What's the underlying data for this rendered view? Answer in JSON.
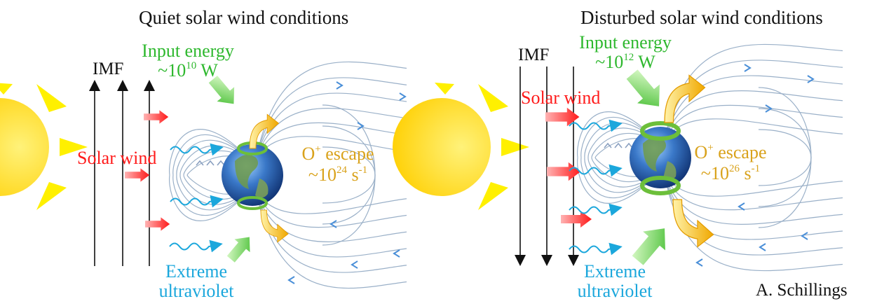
{
  "colors": {
    "sun": "#ffd700",
    "sun_rays": "#fff000",
    "field_lines": "#9ab0c8",
    "field_arrows": "#4a8fd8",
    "wind": "#ff2b2b",
    "input": "#66cc44",
    "escape": "#f5b400",
    "euv": "#1ba7dc",
    "ring": "#6cbf3a"
  },
  "icons": [
    "sun-icon",
    "earth-icon",
    "solar-wind-arrow-icon",
    "input-energy-arrow-icon",
    "oxygen-escape-arrow-icon",
    "euv-wave-icon",
    "auroral-ring-icon",
    "imf-arrow-icon"
  ],
  "panels": [
    {
      "title": "Quiet solar wind conditions",
      "imf": "IMF",
      "imf_direction": "northward",
      "input_label": "Input energy",
      "input_value": "~10",
      "input_exp": "10",
      "input_unit": " W",
      "wind_label": "Solar wind",
      "escape_label": "O",
      "escape_sup": "+",
      "escape_word": " escape",
      "escape_value": "~10",
      "escape_exp": "24",
      "escape_unit": " s",
      "escape_unit_exp": "-1",
      "euv_line1": "Extreme",
      "euv_line2": "ultraviolet"
    },
    {
      "title": "Disturbed solar wind conditions",
      "imf": "IMF",
      "imf_direction": "southward",
      "input_label": "Input energy",
      "input_value": "~10",
      "input_exp": "12",
      "input_unit": " W",
      "wind_label": "Solar wind",
      "escape_label": "O",
      "escape_sup": "+",
      "escape_word": " escape",
      "escape_value": "~10",
      "escape_exp": "26",
      "escape_unit": " s",
      "escape_unit_exp": "-1",
      "euv_line1": "Extreme",
      "euv_line2": "ultraviolet"
    }
  ],
  "credit": "A. Schillings"
}
